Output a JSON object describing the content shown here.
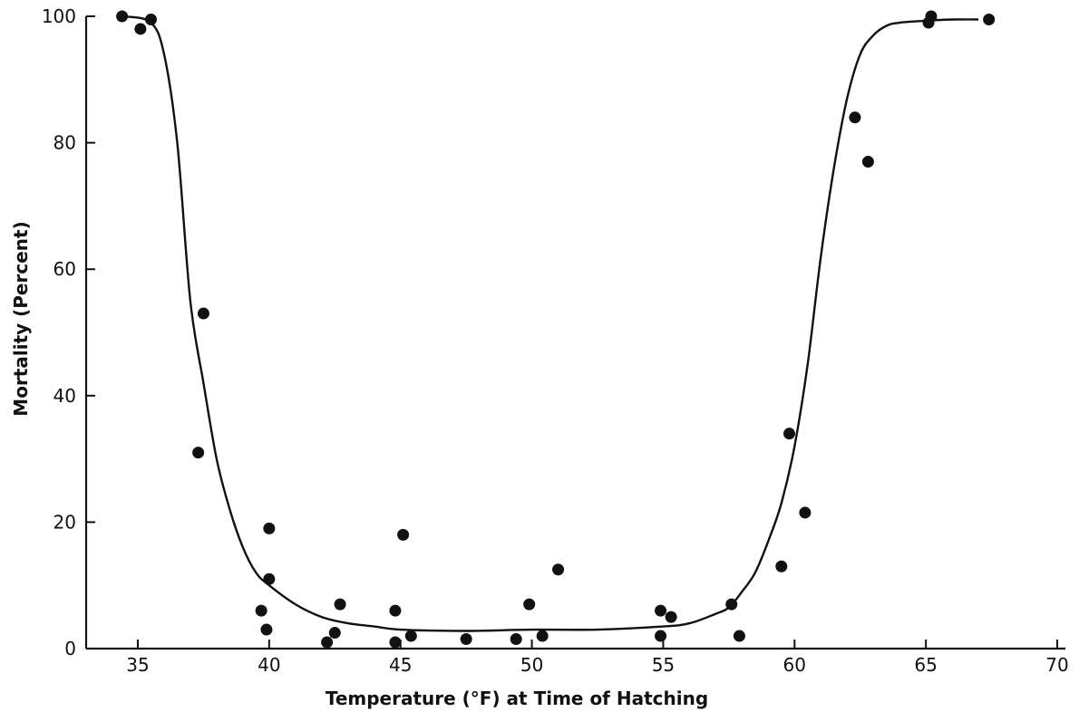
{
  "chart_data": {
    "type": "scatter",
    "title": "",
    "xlabel": "Temperature (°F) at Time of Hatching",
    "ylabel": "Mortality (Percent)",
    "xlim": [
      32,
      70
    ],
    "ylim": [
      0,
      100
    ],
    "xticks": [
      35,
      40,
      45,
      50,
      55,
      60,
      65,
      70
    ],
    "yticks": [
      0,
      20,
      40,
      60,
      80,
      100
    ],
    "xtick_labels": [
      "35",
      "40",
      "45",
      "50",
      "55",
      "60",
      "65",
      "70"
    ],
    "ytick_labels": [
      "0",
      "20",
      "40",
      "60",
      "80",
      "100"
    ],
    "grid": false,
    "legend": "none",
    "points": [
      {
        "x": 34.4,
        "y": 100
      },
      {
        "x": 35.1,
        "y": 98
      },
      {
        "x": 35.5,
        "y": 99.5
      },
      {
        "x": 37.3,
        "y": 31
      },
      {
        "x": 37.5,
        "y": 53
      },
      {
        "x": 39.7,
        "y": 6
      },
      {
        "x": 39.9,
        "y": 3
      },
      {
        "x": 40.0,
        "y": 11
      },
      {
        "x": 40.0,
        "y": 19
      },
      {
        "x": 42.2,
        "y": 1
      },
      {
        "x": 42.5,
        "y": 2.5
      },
      {
        "x": 42.7,
        "y": 7
      },
      {
        "x": 44.8,
        "y": 1
      },
      {
        "x": 44.8,
        "y": 6
      },
      {
        "x": 45.1,
        "y": 18
      },
      {
        "x": 45.4,
        "y": 2
      },
      {
        "x": 47.5,
        "y": 1.5
      },
      {
        "x": 49.4,
        "y": 1.5
      },
      {
        "x": 49.9,
        "y": 7
      },
      {
        "x": 50.4,
        "y": 2
      },
      {
        "x": 51.0,
        "y": 12.5
      },
      {
        "x": 54.9,
        "y": 2
      },
      {
        "x": 54.9,
        "y": 6
      },
      {
        "x": 55.3,
        "y": 5
      },
      {
        "x": 57.6,
        "y": 7
      },
      {
        "x": 57.9,
        "y": 2
      },
      {
        "x": 59.5,
        "y": 13
      },
      {
        "x": 59.8,
        "y": 34
      },
      {
        "x": 60.4,
        "y": 21.5
      },
      {
        "x": 62.3,
        "y": 84
      },
      {
        "x": 62.8,
        "y": 77
      },
      {
        "x": 65.1,
        "y": 99
      },
      {
        "x": 65.2,
        "y": 100
      },
      {
        "x": 67.4,
        "y": 99.5
      }
    ],
    "fit_curve": {
      "x": [
        34.5,
        35.5,
        36.0,
        36.5,
        37.0,
        37.5,
        38.0,
        38.5,
        39.0,
        39.5,
        40.0,
        41.0,
        42.0,
        43.0,
        44.0,
        45.0,
        47.5,
        50.0,
        52.5,
        55.0,
        56.0,
        57.0,
        57.5,
        58.0,
        58.5,
        59.0,
        59.5,
        60.0,
        60.5,
        61.0,
        61.5,
        62.0,
        62.5,
        63.0,
        63.5,
        64.0,
        65.0,
        66.0,
        67.0
      ],
      "y": [
        100,
        99,
        94,
        80,
        55,
        42,
        30,
        22,
        16,
        12,
        10,
        7,
        5,
        4,
        3.5,
        3,
        2.8,
        3,
        3,
        3.5,
        4,
        5.5,
        6.5,
        9,
        12,
        17,
        23,
        32,
        45,
        62,
        76,
        87,
        94,
        97,
        98.5,
        99,
        99.3,
        99.5,
        99.5
      ]
    }
  }
}
